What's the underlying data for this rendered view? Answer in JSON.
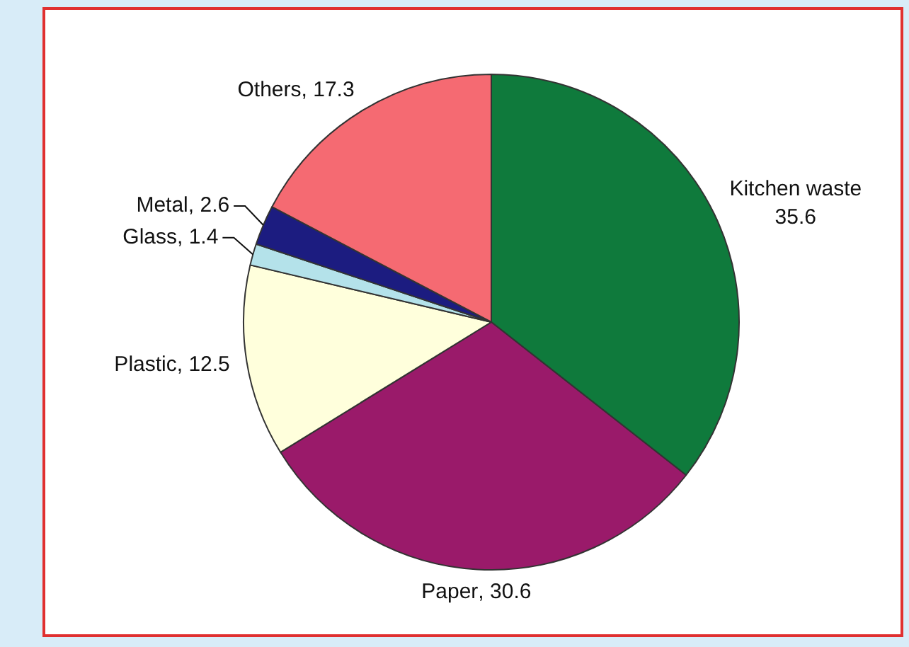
{
  "chart_data": {
    "type": "pie",
    "categories": [
      "Kitchen waste",
      "Paper",
      "Plastic",
      "Glass",
      "Metal",
      "Others"
    ],
    "values": [
      35.6,
      30.6,
      12.5,
      1.4,
      2.6,
      17.3
    ],
    "value_labels": [
      "35.6",
      ", 30.6",
      ", 12.5",
      ", 1.4",
      ", 2.6",
      ", 17.3"
    ],
    "colors": [
      "#0f7a3c",
      "#9a1a6a",
      "#ffffdc",
      "#b4e2ea",
      "#1c1c80",
      "#f56a72"
    ],
    "legend": false
  }
}
